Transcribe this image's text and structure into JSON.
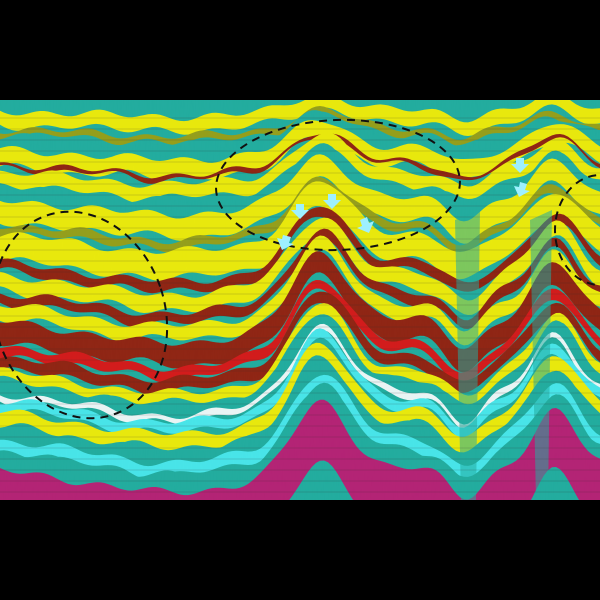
{
  "image": {
    "kind": "seismic-cross-section",
    "palette": {
      "teal": "#17a89a",
      "cyan": "#3fe4e8",
      "yellow": "#e8e800",
      "olive": "#8f9a10",
      "dark_red": "#8a1a08",
      "red": "#d01010",
      "magenta": "#b0186e",
      "white": "#e8f4f4",
      "background": "#000000"
    },
    "annotations": {
      "dashed_ellipses": 3,
      "arrow_markers": 6,
      "arrow_color": "#9ef0ff",
      "ellipse_color": "#111111"
    }
  }
}
